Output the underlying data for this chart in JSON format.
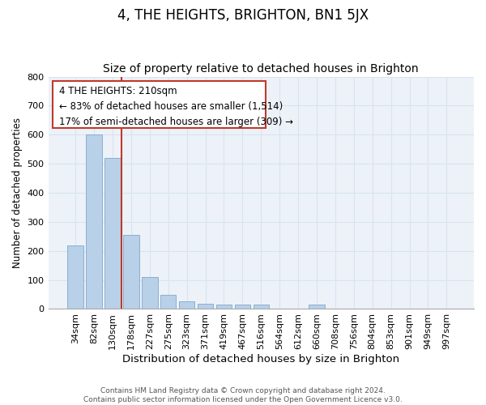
{
  "title": "4, THE HEIGHTS, BRIGHTON, BN1 5JX",
  "subtitle": "Size of property relative to detached houses in Brighton",
  "xlabel": "Distribution of detached houses by size in Brighton",
  "ylabel": "Number of detached properties",
  "categories": [
    "34sqm",
    "82sqm",
    "130sqm",
    "178sqm",
    "227sqm",
    "275sqm",
    "323sqm",
    "371sqm",
    "419sqm",
    "467sqm",
    "516sqm",
    "564sqm",
    "612sqm",
    "660sqm",
    "708sqm",
    "756sqm",
    "804sqm",
    "853sqm",
    "901sqm",
    "949sqm",
    "997sqm"
  ],
  "values": [
    220,
    600,
    520,
    255,
    110,
    50,
    25,
    18,
    15,
    14,
    14,
    0,
    0,
    14,
    0,
    0,
    0,
    0,
    0,
    0,
    0
  ],
  "bar_color": "#b8d0e8",
  "bar_edge_color": "#8ab0d0",
  "annotation_box_text": "4 THE HEIGHTS: 210sqm\n← 83% of detached houses are smaller (1,514)\n17% of semi-detached houses are larger (309) →",
  "vline_color": "#c0392b",
  "vline_x": 2.5,
  "ylim": [
    0,
    800
  ],
  "yticks": [
    0,
    100,
    200,
    300,
    400,
    500,
    600,
    700,
    800
  ],
  "grid_color": "#d8e4f0",
  "bg_color": "#edf2f8",
  "footer_text": "Contains HM Land Registry data © Crown copyright and database right 2024.\nContains public sector information licensed under the Open Government Licence v3.0.",
  "title_fontsize": 12,
  "subtitle_fontsize": 10,
  "xlabel_fontsize": 9.5,
  "ylabel_fontsize": 8.5,
  "annotation_fontsize": 8.5,
  "tick_fontsize": 8
}
